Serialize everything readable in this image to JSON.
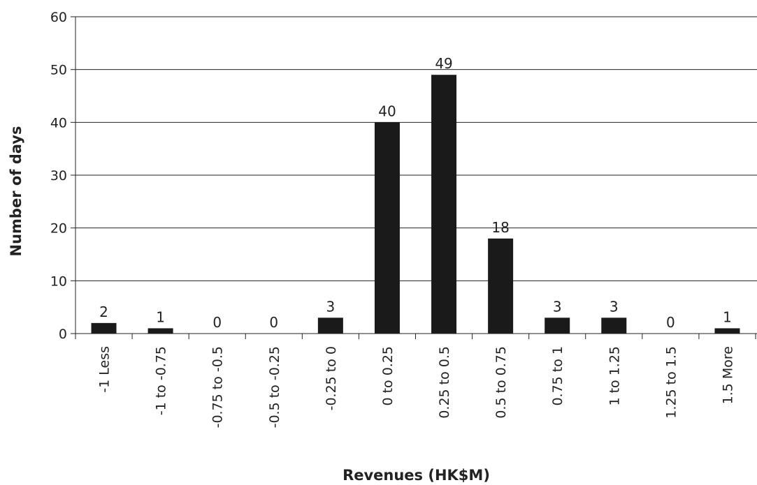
{
  "chart_data": {
    "type": "bar",
    "title": "",
    "xlabel": "Revenues (HK$M)",
    "ylabel": "Number of days",
    "categories": [
      "-1 Less",
      "-1 to -0.75",
      "-0.75 to -0.5",
      "-0.5 to -0.25",
      "-0.25 to 0",
      "0 to 0.25",
      "0.25 to 0.5",
      "0.5 to 0.75",
      "0.75 to 1",
      "1 to 1.25",
      "1.25 to 1.5",
      "1.5 More"
    ],
    "values": [
      2,
      1,
      0,
      0,
      3,
      40,
      49,
      18,
      3,
      3,
      0,
      1
    ],
    "value_labels": [
      "2",
      "1",
      "0",
      "0",
      "3",
      "40",
      "49",
      "18",
      "3",
      "3",
      "0",
      "1"
    ],
    "yticks": [
      "0",
      "10",
      "20",
      "30",
      "40",
      "50",
      "60"
    ],
    "ylim": [
      0,
      60
    ],
    "grid": true,
    "legend": "none",
    "bar_color": "#1a1a1a",
    "grid_color": "#222222"
  }
}
